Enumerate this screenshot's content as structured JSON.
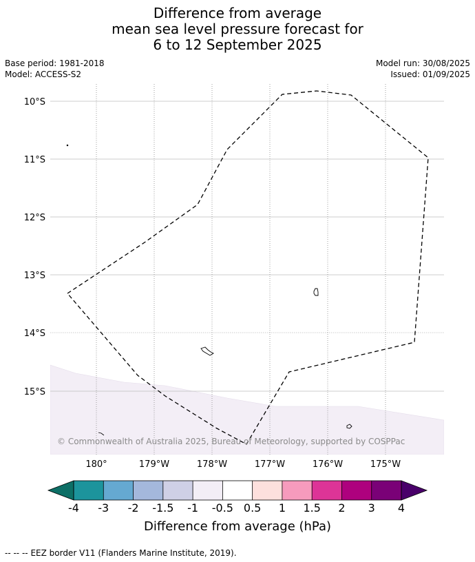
{
  "title": {
    "line1": "Difference from average",
    "line2": "mean sea level pressure forecast for",
    "line3": "6 to 12 September 2025"
  },
  "meta": {
    "base_period": "Base period: 1981-2018",
    "model": "Model: ACCESS-S2",
    "model_run": "Model run: 30/08/2025",
    "issued": "Issued: 01/09/2025"
  },
  "map": {
    "lat_labels": [
      "10°S",
      "11°S",
      "12°S",
      "13°S",
      "14°S",
      "15°S"
    ],
    "lon_labels": [
      "180°",
      "179°W",
      "178°W",
      "177°W",
      "176°W",
      "175°W"
    ],
    "credit": "© Commonwealth of Australia 2025, Bureau of Meteorology, supported by COSPPac",
    "shaded_anomaly_class": "-0.5 to -1",
    "shade_color": "#f3eef6"
  },
  "colorbar": {
    "title": "Difference from average (hPa)",
    "ticks": [
      "-4",
      "-3",
      "-2",
      "-1.5",
      "-1",
      "-0.5",
      "0.5",
      "1",
      "1.5",
      "2",
      "3",
      "4"
    ],
    "colors": [
      "#0d6f66",
      "#1c949c",
      "#65a9d1",
      "#a4b8dc",
      "#cfd0e6",
      "#f3eef6",
      "#ffffff",
      "#fde0dd",
      "#f69bbd",
      "#dd3497",
      "#ae017e",
      "#7a0177",
      "#49006a"
    ]
  },
  "footer": {
    "legend_symbol": "--  --  --",
    "legend_text": "EEZ border V11 (Flanders Marine Institute, 2019)."
  }
}
